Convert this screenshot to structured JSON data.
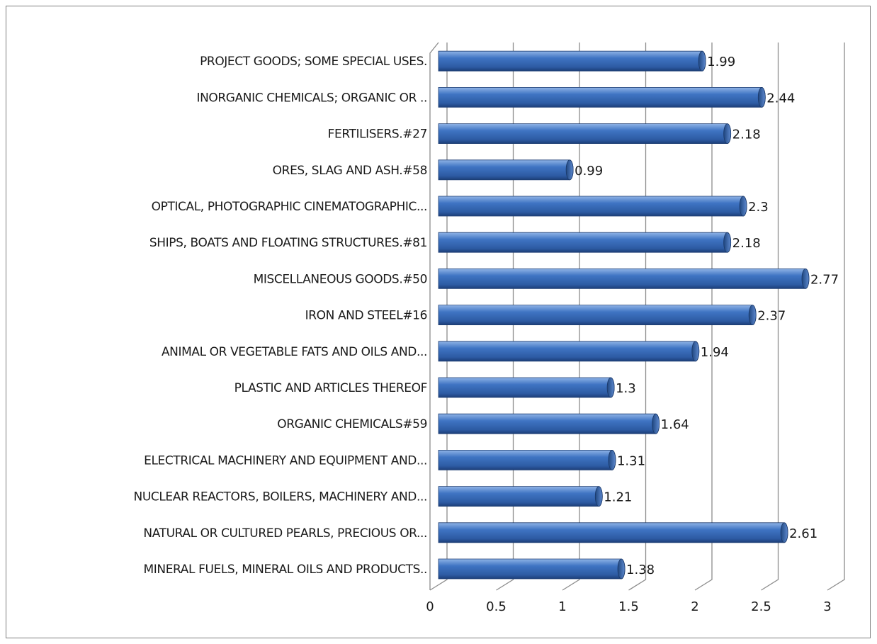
{
  "chart_data": {
    "type": "bar",
    "orientation": "horizontal",
    "style": "3d-cylinder",
    "bar_color": "#3f74c3",
    "categories": [
      "MINERAL FUELS, MINERAL OILS AND PRODUCTS..",
      "NATURAL OR CULTURED PEARLS, PRECIOUS OR...",
      "NUCLEAR REACTORS, BOILERS, MACHINERY AND...",
      "ELECTRICAL MACHINERY AND EQUIPMENT AND...",
      "ORGANIC CHEMICALS#59",
      "PLASTIC AND ARTICLES THEREOF",
      "ANIMAL OR VEGETABLE FATS AND OILS AND...",
      "IRON AND STEEL#16",
      "MISCELLANEOUS GOODS.#50",
      "SHIPS, BOATS AND FLOATING STRUCTURES.#81",
      "OPTICAL, PHOTOGRAPHIC CINEMATOGRAPHIC...",
      "ORES, SLAG AND ASH.#58",
      "FERTILISERS.#27",
      "INORGANIC CHEMICALS; ORGANIC OR ..",
      "PROJECT GOODS; SOME SPECIAL USES."
    ],
    "values": [
      1.38,
      2.61,
      1.21,
      1.31,
      1.64,
      1.3,
      1.94,
      2.37,
      2.77,
      2.18,
      2.3,
      0.99,
      2.18,
      2.44,
      1.99
    ],
    "value_labels": [
      "1.38",
      "2.61",
      "1.21",
      "1.31",
      "1.64",
      "1.3",
      "1.94",
      "2.37",
      "2.77",
      "2.18",
      "2.3",
      "0.99",
      "2.18",
      "2.44",
      "1.99"
    ],
    "xlim": [
      0,
      3
    ],
    "xticks": [
      "0",
      "0.5",
      "1",
      "1.5",
      "2",
      "2.5",
      "3"
    ],
    "grid": true,
    "legend": false
  }
}
